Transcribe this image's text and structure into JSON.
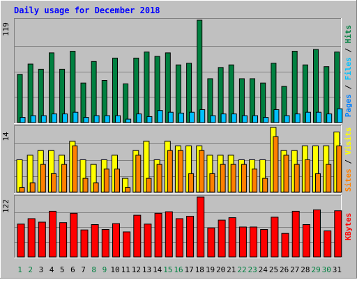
{
  "title": "Daily usage for December 2018",
  "chart_data": [
    {
      "type": "bar",
      "panel": "pages-files-hits",
      "categories": [
        "1",
        "2",
        "3",
        "4",
        "5",
        "6",
        "7",
        "8",
        "9",
        "10",
        "11",
        "12",
        "13",
        "14",
        "15",
        "16",
        "17",
        "18",
        "19",
        "20",
        "21",
        "22",
        "23",
        "24",
        "25",
        "26",
        "27",
        "28",
        "29",
        "30",
        "31"
      ],
      "weekend_days": [
        "1",
        "2",
        "8",
        "9",
        "15",
        "16",
        "22",
        "23",
        "29",
        "30"
      ],
      "max_label": "119",
      "ymax": 119,
      "ylabel_parts": [
        "Pages",
        "Files",
        "Hits"
      ],
      "ylabel_separator": " / ",
      "series": [
        {
          "name": "Hits",
          "color": "#008040",
          "values": [
            56,
            68,
            62,
            81,
            62,
            83,
            46,
            71,
            49,
            75,
            45,
            75,
            82,
            77,
            81,
            67,
            69,
            119,
            51,
            64,
            67,
            51,
            51,
            46,
            69,
            42,
            83,
            67,
            85,
            65,
            82
          ]
        },
        {
          "name": "Files",
          "color": "#00c0ff",
          "values": [
            6,
            8,
            8,
            10,
            10,
            12,
            6,
            8,
            8,
            8,
            4,
            10,
            7,
            14,
            12,
            11,
            12,
            15,
            8,
            10,
            10,
            8,
            8,
            6,
            15,
            8,
            10,
            12,
            12,
            10,
            16
          ]
        },
        {
          "name": "Pages",
          "color": "#0080ff",
          "values": [
            4,
            5,
            5,
            6,
            6,
            7,
            4,
            5,
            5,
            5,
            3,
            6,
            4,
            8,
            7,
            7,
            7,
            9,
            5,
            6,
            6,
            5,
            5,
            4,
            9,
            5,
            6,
            7,
            7,
            6,
            10
          ]
        }
      ]
    },
    {
      "type": "bar",
      "panel": "visits-sites",
      "categories": [
        "1",
        "2",
        "3",
        "4",
        "5",
        "6",
        "7",
        "8",
        "9",
        "10",
        "11",
        "12",
        "13",
        "14",
        "15",
        "16",
        "17",
        "18",
        "19",
        "20",
        "21",
        "22",
        "23",
        "24",
        "25",
        "26",
        "27",
        "28",
        "29",
        "30",
        "31"
      ],
      "max_label": "14",
      "ymax": 14,
      "ylabel_parts": [
        "Sites",
        "Visits"
      ],
      "ylabel_separator": " / ",
      "series": [
        {
          "name": "Visits",
          "color": "#ffff00",
          "values": [
            7,
            8,
            9,
            9,
            8,
            11,
            7,
            6,
            7,
            8,
            3,
            9,
            11,
            7,
            11,
            10,
            10,
            10,
            8,
            8,
            8,
            7,
            7,
            7,
            14,
            9,
            9,
            10,
            10,
            10,
            13
          ]
        },
        {
          "name": "Sites",
          "color": "#ff8000",
          "values": [
            1,
            2,
            6,
            4,
            6,
            10,
            3,
            2,
            5,
            5,
            1,
            8,
            3,
            6,
            9,
            9,
            4,
            9,
            4,
            6,
            6,
            6,
            5,
            3,
            12,
            8,
            6,
            7,
            4,
            6,
            10
          ]
        }
      ]
    },
    {
      "type": "bar",
      "panel": "kbytes",
      "categories": [
        "1",
        "2",
        "3",
        "4",
        "5",
        "6",
        "7",
        "8",
        "9",
        "10",
        "11",
        "12",
        "13",
        "14",
        "15",
        "16",
        "17",
        "18",
        "19",
        "20",
        "21",
        "22",
        "23",
        "24",
        "25",
        "26",
        "27",
        "28",
        "29",
        "30",
        "31"
      ],
      "max_label": "122",
      "ymax": 122,
      "ylabel_parts": [
        "KBytes"
      ],
      "ylabel_separator": "",
      "series": [
        {
          "name": "KBytes",
          "color": "#ff0000",
          "values": [
            67,
            78,
            71,
            93,
            70,
            89,
            55,
            66,
            56,
            68,
            51,
            85,
            67,
            89,
            92,
            78,
            83,
            122,
            59,
            75,
            80,
            61,
            61,
            56,
            81,
            48,
            93,
            66,
            96,
            53,
            94
          ]
        }
      ]
    }
  ]
}
